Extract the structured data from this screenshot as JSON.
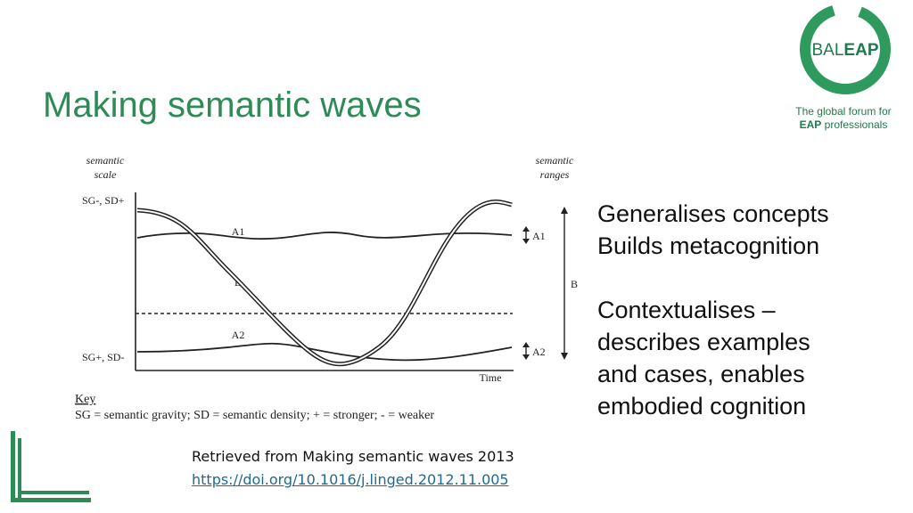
{
  "slide": {
    "title": "Making semantic waves"
  },
  "logo": {
    "name": "BALEAP",
    "name_light": "BAL",
    "name_bold": "EAP",
    "tagline_line1": "The global forum for",
    "tagline_bold": "EAP",
    "tagline_line2_rest": " professionals"
  },
  "diagram": {
    "left_axis_title_1": "semantic",
    "left_axis_title_2": "scale",
    "right_axis_title_1": "semantic",
    "right_axis_title_2": "ranges",
    "top_label": "SG-, SD+",
    "bottom_label": "SG+, SD-",
    "x_label": "Time",
    "curve_a1": "A1",
    "curve_b": "B",
    "curve_a2": "A2",
    "range_a1": "A1",
    "range_b": "B",
    "range_a2": "A2",
    "key_title": "Key",
    "key_text": "SG = semantic gravity; SD = semantic density; + = stronger; - = weaker"
  },
  "side_text": {
    "line1": "Generalises concepts",
    "line2": "Builds metacognition",
    "line3": "Contextualises –",
    "line4": "describes examples",
    "line5": "and cases, enables",
    "line6": "embodied cognition"
  },
  "credit": {
    "text": "Retrieved from Making semantic waves 2013",
    "link": "https://doi.org/10.1016/j.linged.2012.11.005"
  },
  "colors": {
    "brand_green": "#2e8b57",
    "link_blue": "#1f6a8f"
  }
}
